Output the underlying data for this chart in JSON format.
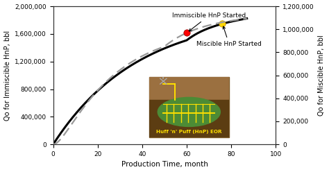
{
  "title": "",
  "xlabel": "Production Time, month",
  "ylabel_left": "Qo for Immiscible HnP, bbl",
  "ylabel_right": "Qo for Miscible HnP, bbl",
  "xlim": [
    0,
    100
  ],
  "ylim_left": [
    0,
    2000000
  ],
  "ylim_right": [
    0,
    1200000
  ],
  "yticks_left": [
    0,
    400000,
    800000,
    1200000,
    1600000,
    2000000
  ],
  "yticks_right": [
    0,
    200000,
    400000,
    600000,
    800000,
    1000000,
    1200000
  ],
  "xticks": [
    0,
    20,
    40,
    60,
    80,
    100
  ],
  "immiscible_label": "Immiscible HnP Started",
  "miscible_label": "Miscible HnP Started",
  "hnp_label": "Huff 'n' Puff (HnP) EOR",
  "solid_line_color": "#000000",
  "dashed_line_color": "#999999",
  "bg_color": "#ffffff"
}
